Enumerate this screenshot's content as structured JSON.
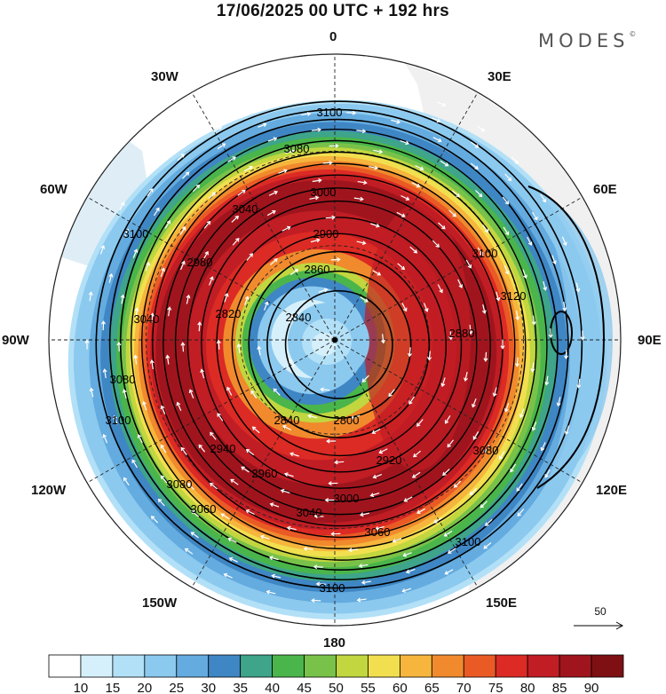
{
  "title": "17/06/2025  00 UTC  + 192 hrs",
  "logo": "MODES",
  "logo_mark": "©",
  "meridian_labels": {
    "n0": "0",
    "n30e": "30E",
    "n60e": "60E",
    "n90e": "90E",
    "n120e": "120E",
    "n150e": "150E",
    "n180": "180",
    "n150w": "150W",
    "n120w": "120W",
    "n90w": "90W",
    "n60w": "60W",
    "n30w": "30W"
  },
  "contour_labels": [
    "3100",
    "3080",
    "3060",
    "3040",
    "3000",
    "2980",
    "2960",
    "2940",
    "2920",
    "2900",
    "2880",
    "2860",
    "2840",
    "2820",
    "2800",
    "3120"
  ],
  "reference_vector": {
    "label": "50"
  },
  "colorbar": {
    "levels": [
      "10",
      "15",
      "20",
      "25",
      "30",
      "35",
      "40",
      "45",
      "50",
      "55",
      "60",
      "65",
      "70",
      "75",
      "80",
      "85",
      "90"
    ],
    "colors": [
      "#ffffff",
      "#d6f0fb",
      "#b2e0f7",
      "#8cc9ef",
      "#64abdf",
      "#3f86c4",
      "#3ea48a",
      "#4ab54a",
      "#79c24a",
      "#c1d63f",
      "#f2df4f",
      "#f6b53c",
      "#f08a2d",
      "#ea5a25",
      "#dc2a24",
      "#c11d24",
      "#a0151d",
      "#7e1014"
    ]
  },
  "colors": {
    "land": "#f0f0f0",
    "graticule": "#222222",
    "contour": "#000000",
    "arrows": "#ffffff"
  }
}
